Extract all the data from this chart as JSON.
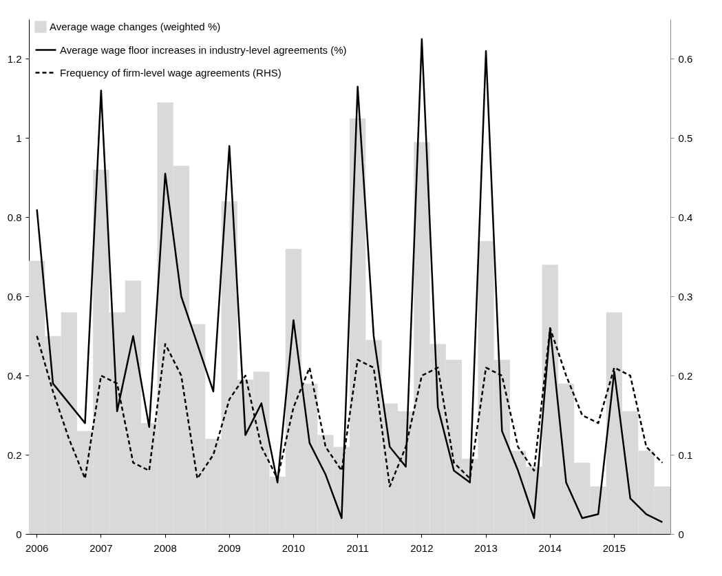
{
  "chart_data": {
    "type": "bar",
    "categories": [
      "2006",
      null,
      null,
      null,
      "2007",
      null,
      null,
      null,
      "2008",
      null,
      null,
      null,
      "2009",
      null,
      null,
      null,
      "2010",
      null,
      null,
      null,
      "2011",
      null,
      null,
      null,
      "2012",
      null,
      null,
      null,
      "2013",
      null,
      null,
      null,
      "2014",
      null,
      null,
      null,
      "2015",
      null,
      null,
      null
    ],
    "series": [
      {
        "name": "Average wage changes (weighted %)",
        "color": "#d9d9d9",
        "values": [
          0.69,
          0.5,
          0.56,
          0.26,
          0.92,
          0.56,
          0.64,
          0.28,
          1.09,
          0.93,
          0.53,
          0.24,
          0.84,
          0.39,
          0.41,
          0.145,
          0.72,
          0.38,
          0.25,
          0.22,
          1.05,
          0.49,
          0.33,
          0.31,
          0.99,
          0.48,
          0.44,
          0.19,
          0.74,
          0.44,
          0.21,
          0.17,
          0.68,
          0.38,
          0.18,
          0.12,
          0.56,
          0.31,
          0.21,
          0.12
        ]
      },
      {
        "name": "Average wage floor increases in industry-level agreements (%)",
        "type": "line",
        "color": "#000000",
        "line_style": "solid",
        "values": [
          0.82,
          0.38,
          0.33,
          0.28,
          1.12,
          0.31,
          0.5,
          0.27,
          0.91,
          0.6,
          0.48,
          0.36,
          0.98,
          0.25,
          0.33,
          0.13,
          0.54,
          0.23,
          0.15,
          0.04,
          1.13,
          0.5,
          0.22,
          0.17,
          1.25,
          0.32,
          0.16,
          0.13,
          1.22,
          0.26,
          0.16,
          0.04,
          0.52,
          0.13,
          0.04,
          0.05,
          0.41,
          0.09,
          0.05,
          0.03
        ]
      },
      {
        "name": "Frequency of firm-level wage agreements (RHS)",
        "type": "line",
        "color": "#000000",
        "line_style": "dashed",
        "axis": "y2",
        "values": [
          0.25,
          0.18,
          0.12,
          0.07,
          0.2,
          0.19,
          0.09,
          0.08,
          0.24,
          0.2,
          0.07,
          0.1,
          0.17,
          0.2,
          0.11,
          0.07,
          0.16,
          0.21,
          0.11,
          0.08,
          0.22,
          0.21,
          0.06,
          0.11,
          0.2,
          0.21,
          0.09,
          0.07,
          0.21,
          0.2,
          0.11,
          0.08,
          0.26,
          0.2,
          0.15,
          0.14,
          0.21,
          0.2,
          0.11,
          0.09
        ]
      }
    ],
    "ylim": [
      0,
      1.3
    ],
    "yticks": [
      0,
      0.2,
      0.4,
      0.6,
      0.8,
      1,
      1.2
    ],
    "y2lim": [
      0,
      0.65
    ],
    "y2ticks": [
      0,
      0.1,
      0.2,
      0.3,
      0.4,
      0.5,
      0.6
    ],
    "legend": "top left"
  }
}
